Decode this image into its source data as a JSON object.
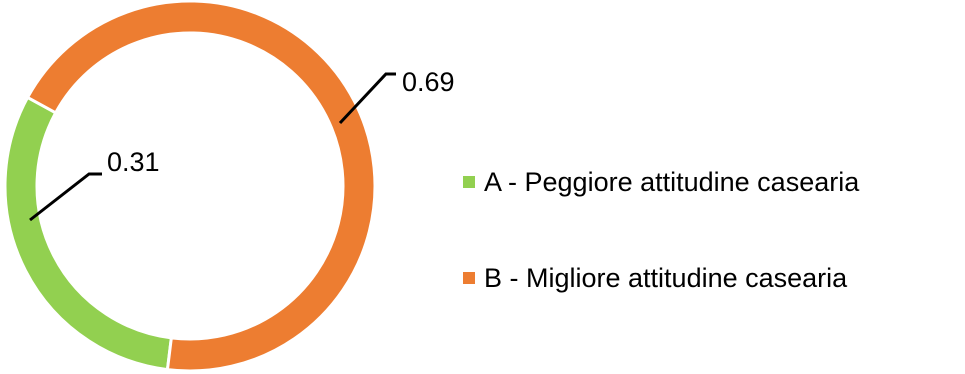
{
  "chart_data": {
    "type": "pie",
    "variant": "donut",
    "categories": [
      "A - Peggiore attitudine casearia",
      "B - Migliore attitudine casearia"
    ],
    "values": [
      0.31,
      0.69
    ],
    "data_labels": [
      "0.31",
      "0.69"
    ],
    "colors": [
      "#92d050",
      "#ed7d31"
    ],
    "title": "",
    "legend": "right"
  }
}
